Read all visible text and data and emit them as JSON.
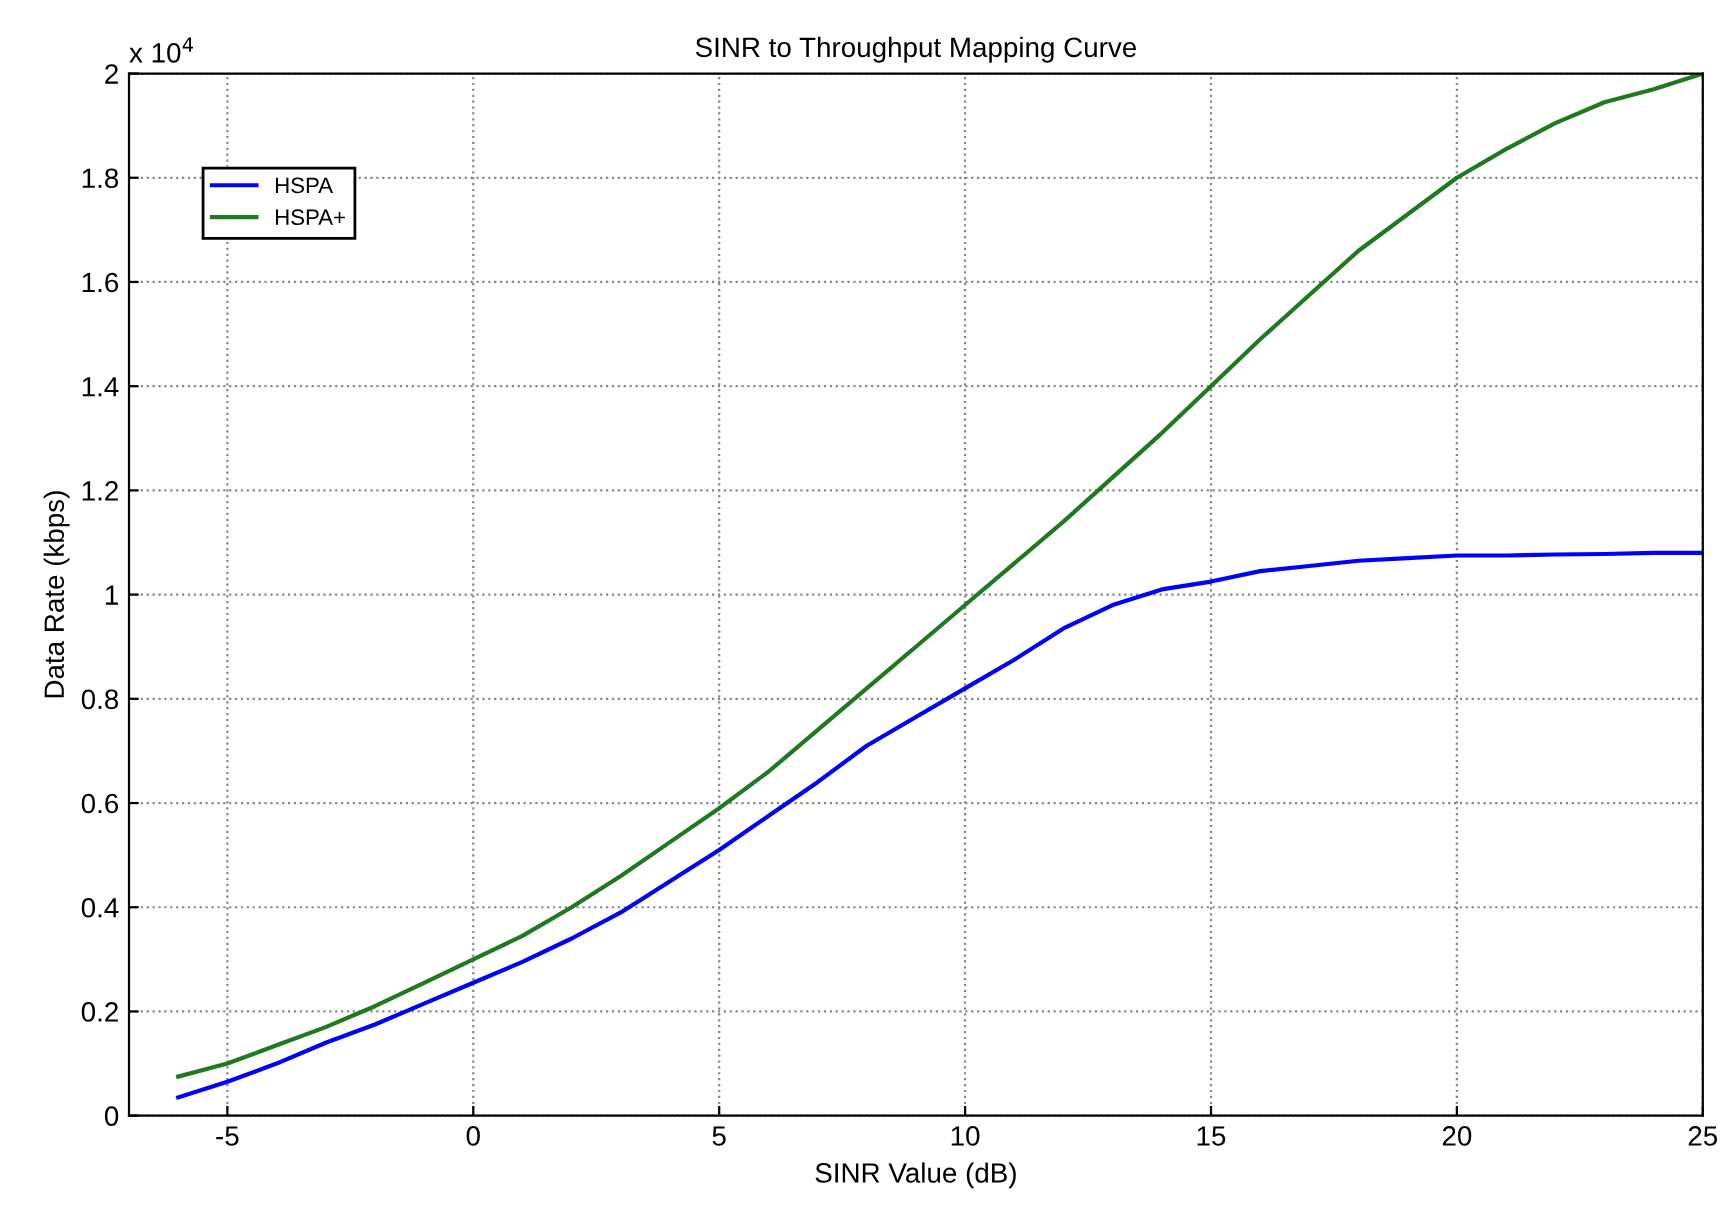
{
  "chart_data": {
    "type": "line",
    "title": "SINR to Throughput Mapping Curve",
    "xlabel": "SINR Value (dB)",
    "ylabel": "Data Rate (kbps)",
    "annotations": [
      "x 10$^{4}$"
    ],
    "x": [
      -6,
      -5,
      -4,
      -3,
      -2,
      -1,
      0,
      1,
      2,
      3,
      4,
      5,
      6,
      7,
      8,
      9,
      10,
      11,
      12,
      13,
      14,
      15,
      16,
      17,
      18,
      19,
      20,
      21,
      22,
      23,
      24,
      25
    ],
    "series": [
      {
        "name": "HSPA",
        "color": "#0000ff",
        "values": [
          0.035,
          0.065,
          0.1,
          0.14,
          0.175,
          0.215,
          0.255,
          0.295,
          0.34,
          0.39,
          0.45,
          0.51,
          0.575,
          0.64,
          0.71,
          0.765,
          0.82,
          0.875,
          0.935,
          0.98,
          1.01,
          1.025,
          1.045,
          1.055,
          1.065,
          1.07,
          1.075,
          1.075,
          1.077,
          1.078,
          1.08,
          1.08
        ]
      },
      {
        "name": "HSPA+",
        "color": "#1f7a1f",
        "values": [
          0.075,
          0.1,
          0.135,
          0.17,
          0.21,
          0.255,
          0.3,
          0.345,
          0.4,
          0.46,
          0.525,
          0.59,
          0.66,
          0.74,
          0.82,
          0.9,
          0.98,
          1.06,
          1.14,
          1.225,
          1.31,
          1.4,
          1.49,
          1.575,
          1.66,
          1.73,
          1.8,
          1.855,
          1.905,
          1.945,
          1.97,
          2.0
        ]
      }
    ],
    "xlim": [
      -7,
      25
    ],
    "xticks": [
      -5,
      0,
      5,
      10,
      15,
      20,
      25
    ],
    "ylim": [
      0,
      2
    ],
    "yticks": [
      0,
      0.2,
      0.4,
      0.6,
      0.8,
      1,
      1.2,
      1.4,
      1.6,
      1.8,
      2
    ],
    "grid": true,
    "legend": "top left",
    "line_style": "solid",
    "marker": "none"
  }
}
